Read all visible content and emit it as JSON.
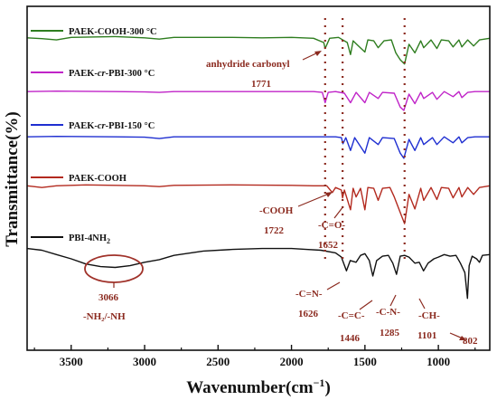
{
  "chart_data": {
    "type": "line",
    "xlabel": "Wavenumber(cm⁻¹)",
    "ylabel": "Transmittance(%)",
    "xlim": [
      3800,
      650
    ],
    "xticks": [
      3500,
      3000,
      2500,
      2000,
      1500,
      1000
    ],
    "tick_labels": [
      "3500",
      "3000",
      "2500",
      "2000",
      "1500",
      "1000"
    ],
    "grid": false,
    "series": [
      {
        "name": "PAEK-COOH-300 °C",
        "color": "#2e7d1f",
        "points": [
          [
            3800,
            0.55
          ],
          [
            3700,
            0.45
          ],
          [
            3600,
            0.3
          ],
          [
            3500,
            0.6
          ],
          [
            3200,
            0.7
          ],
          [
            3000,
            0.55
          ],
          [
            2900,
            0.4
          ],
          [
            2800,
            0.6
          ],
          [
            2400,
            0.6
          ],
          [
            2200,
            0.55
          ],
          [
            2000,
            0.6
          ],
          [
            1850,
            0.5
          ],
          [
            1780,
            0.0
          ],
          [
            1771,
            -0.7
          ],
          [
            1740,
            0.5
          ],
          [
            1680,
            0.6
          ],
          [
            1660,
            0.4
          ],
          [
            1620,
            0.0
          ],
          [
            1598,
            -1.4
          ],
          [
            1580,
            0.2
          ],
          [
            1550,
            -0.3
          ],
          [
            1500,
            -1.1
          ],
          [
            1480,
            0.3
          ],
          [
            1440,
            0.2
          ],
          [
            1410,
            -0.6
          ],
          [
            1370,
            0.2
          ],
          [
            1320,
            0.3
          ],
          [
            1290,
            -1.2
          ],
          [
            1260,
            -2.0
          ],
          [
            1230,
            -2.5
          ],
          [
            1200,
            -0.2
          ],
          [
            1160,
            -1.2
          ],
          [
            1120,
            0.2
          ],
          [
            1100,
            -0.6
          ],
          [
            1050,
            0.3
          ],
          [
            1010,
            -0.7
          ],
          [
            980,
            0.3
          ],
          [
            930,
            0.2
          ],
          [
            900,
            -0.5
          ],
          [
            860,
            0.3
          ],
          [
            840,
            -0.5
          ],
          [
            800,
            0.3
          ],
          [
            760,
            -0.4
          ],
          [
            720,
            0.3
          ],
          [
            650,
            0.5
          ]
        ]
      },
      {
        "name": "PAEK-cr-PBI-300 °C",
        "color": "#c024c8",
        "points": [
          [
            3800,
            0.3
          ],
          [
            3600,
            0.35
          ],
          [
            3200,
            0.3
          ],
          [
            3000,
            0.25
          ],
          [
            2900,
            0.2
          ],
          [
            2800,
            0.3
          ],
          [
            2000,
            0.3
          ],
          [
            1850,
            0.3
          ],
          [
            1790,
            0.2
          ],
          [
            1771,
            -1.0
          ],
          [
            1750,
            0.2
          ],
          [
            1700,
            0.3
          ],
          [
            1640,
            0.1
          ],
          [
            1598,
            -1.0
          ],
          [
            1560,
            0.2
          ],
          [
            1500,
            -1.0
          ],
          [
            1470,
            0.2
          ],
          [
            1410,
            -0.5
          ],
          [
            1380,
            0.2
          ],
          [
            1300,
            0.1
          ],
          [
            1260,
            -1.5
          ],
          [
            1235,
            -1.9
          ],
          [
            1200,
            0.0
          ],
          [
            1160,
            -1.1
          ],
          [
            1120,
            0.2
          ],
          [
            1100,
            -0.5
          ],
          [
            1040,
            0.2
          ],
          [
            1010,
            -0.6
          ],
          [
            960,
            0.3
          ],
          [
            900,
            -0.3
          ],
          [
            860,
            0.3
          ],
          [
            840,
            -0.4
          ],
          [
            800,
            0.2
          ],
          [
            750,
            0.3
          ],
          [
            650,
            0.3
          ]
        ]
      },
      {
        "name": "PAEK-cr-PBI-150 °C",
        "color": "#1f2fd1",
        "points": [
          [
            3800,
            0.3
          ],
          [
            3600,
            0.35
          ],
          [
            3200,
            0.3
          ],
          [
            3000,
            0.25
          ],
          [
            2900,
            0.1
          ],
          [
            2800,
            0.3
          ],
          [
            2000,
            0.3
          ],
          [
            1800,
            0.3
          ],
          [
            1700,
            0.3
          ],
          [
            1660,
            0.2
          ],
          [
            1650,
            -0.5
          ],
          [
            1630,
            0.2
          ],
          [
            1598,
            -1.3
          ],
          [
            1570,
            0.2
          ],
          [
            1500,
            -1.6
          ],
          [
            1470,
            0.2
          ],
          [
            1410,
            -0.6
          ],
          [
            1380,
            0.2
          ],
          [
            1300,
            0.1
          ],
          [
            1260,
            -1.6
          ],
          [
            1235,
            -2.2
          ],
          [
            1200,
            0.0
          ],
          [
            1160,
            -1.3
          ],
          [
            1120,
            0.2
          ],
          [
            1100,
            -0.6
          ],
          [
            1040,
            0.2
          ],
          [
            1010,
            -0.6
          ],
          [
            960,
            0.3
          ],
          [
            900,
            -0.4
          ],
          [
            860,
            0.3
          ],
          [
            840,
            -0.4
          ],
          [
            800,
            0.2
          ],
          [
            750,
            0.3
          ],
          [
            650,
            0.3
          ]
        ]
      },
      {
        "name": "PAEK-COOH",
        "color": "#b32a1f",
        "points": [
          [
            3800,
            0.5
          ],
          [
            3700,
            0.3
          ],
          [
            3600,
            0.5
          ],
          [
            3400,
            0.6
          ],
          [
            3200,
            0.55
          ],
          [
            3000,
            0.5
          ],
          [
            2900,
            0.4
          ],
          [
            2800,
            0.55
          ],
          [
            2400,
            0.6
          ],
          [
            2000,
            0.55
          ],
          [
            1850,
            0.5
          ],
          [
            1760,
            0.5
          ],
          [
            1722,
            -0.3
          ],
          [
            1700,
            0.3
          ],
          [
            1660,
            0.0
          ],
          [
            1652,
            -0.9
          ],
          [
            1640,
            0.0
          ],
          [
            1598,
            -2.3
          ],
          [
            1580,
            0.2
          ],
          [
            1560,
            -0.8
          ],
          [
            1530,
            0.2
          ],
          [
            1500,
            -2.3
          ],
          [
            1480,
            0.3
          ],
          [
            1440,
            0.2
          ],
          [
            1410,
            -1.2
          ],
          [
            1380,
            0.2
          ],
          [
            1330,
            0.3
          ],
          [
            1300,
            -0.8
          ],
          [
            1260,
            -2.6
          ],
          [
            1230,
            -3.9
          ],
          [
            1200,
            -0.5
          ],
          [
            1160,
            -2.2
          ],
          [
            1120,
            0.2
          ],
          [
            1100,
            -1.2
          ],
          [
            1050,
            0.3
          ],
          [
            1010,
            -1.1
          ],
          [
            980,
            0.3
          ],
          [
            930,
            0.2
          ],
          [
            900,
            -0.9
          ],
          [
            860,
            0.3
          ],
          [
            840,
            -0.8
          ],
          [
            800,
            0.3
          ],
          [
            760,
            -0.5
          ],
          [
            720,
            0.3
          ],
          [
            650,
            0.5
          ]
        ]
      },
      {
        "name": "PBI-4NH₂",
        "color": "#111111",
        "points": [
          [
            3800,
            1.2
          ],
          [
            3700,
            1.0
          ],
          [
            3600,
            0.5
          ],
          [
            3500,
            0.0
          ],
          [
            3400,
            -0.6
          ],
          [
            3300,
            -0.9
          ],
          [
            3200,
            -1.0
          ],
          [
            3100,
            -0.8
          ],
          [
            3050,
            -0.6
          ],
          [
            3000,
            -0.4
          ],
          [
            2900,
            -0.1
          ],
          [
            2800,
            0.4
          ],
          [
            2600,
            0.9
          ],
          [
            2400,
            1.1
          ],
          [
            2200,
            1.2
          ],
          [
            2000,
            1.2
          ],
          [
            1900,
            1.1
          ],
          [
            1800,
            1.0
          ],
          [
            1700,
            0.7
          ],
          [
            1660,
            0.2
          ],
          [
            1626,
            -1.4
          ],
          [
            1600,
            -0.2
          ],
          [
            1560,
            -0.4
          ],
          [
            1530,
            0.4
          ],
          [
            1500,
            0.6
          ],
          [
            1470,
            -0.2
          ],
          [
            1446,
            -2.0
          ],
          [
            1420,
            -0.2
          ],
          [
            1380,
            0.3
          ],
          [
            1340,
            0.4
          ],
          [
            1310,
            -0.5
          ],
          [
            1285,
            -1.8
          ],
          [
            1260,
            0.3
          ],
          [
            1230,
            0.4
          ],
          [
            1200,
            0.2
          ],
          [
            1160,
            -0.5
          ],
          [
            1130,
            -0.4
          ],
          [
            1101,
            -1.4
          ],
          [
            1070,
            -0.5
          ],
          [
            1030,
            0.0
          ],
          [
            1000,
            0.2
          ],
          [
            960,
            0.5
          ],
          [
            920,
            0.3
          ],
          [
            880,
            0.4
          ],
          [
            850,
            -0.5
          ],
          [
            820,
            -1.6
          ],
          [
            802,
            -4.6
          ],
          [
            790,
            -0.8
          ],
          [
            770,
            0.3
          ],
          [
            740,
            0.0
          ],
          [
            720,
            -0.4
          ],
          [
            700,
            0.4
          ],
          [
            650,
            0.5
          ]
        ]
      }
    ],
    "annotations": {
      "anhydride": {
        "line1": "anhydride carbonyl",
        "line2": "1771"
      },
      "cooh": {
        "line1": "-COOH",
        "line2": "1722"
      },
      "co": {
        "line1": "-C=O-",
        "line2": "1652"
      },
      "nh": {
        "line1": "3066",
        "line2": "-NH₂/-NH"
      },
      "cn": {
        "line1": "-C=N-",
        "line2": "1626"
      },
      "cc": {
        "line1": "-C=C-",
        "line2": "1446"
      },
      "cn2": {
        "line1": "-C-N-",
        "line2": "1285"
      },
      "ch": {
        "line1": "-CH-",
        "line2": "1101"
      },
      "p802": {
        "line1": "802"
      }
    },
    "dotted_guides": [
      1771,
      1652,
      1230
    ],
    "colors": {
      "annotation": "#8b2a1f",
      "guide": "#8b2a1f"
    }
  }
}
